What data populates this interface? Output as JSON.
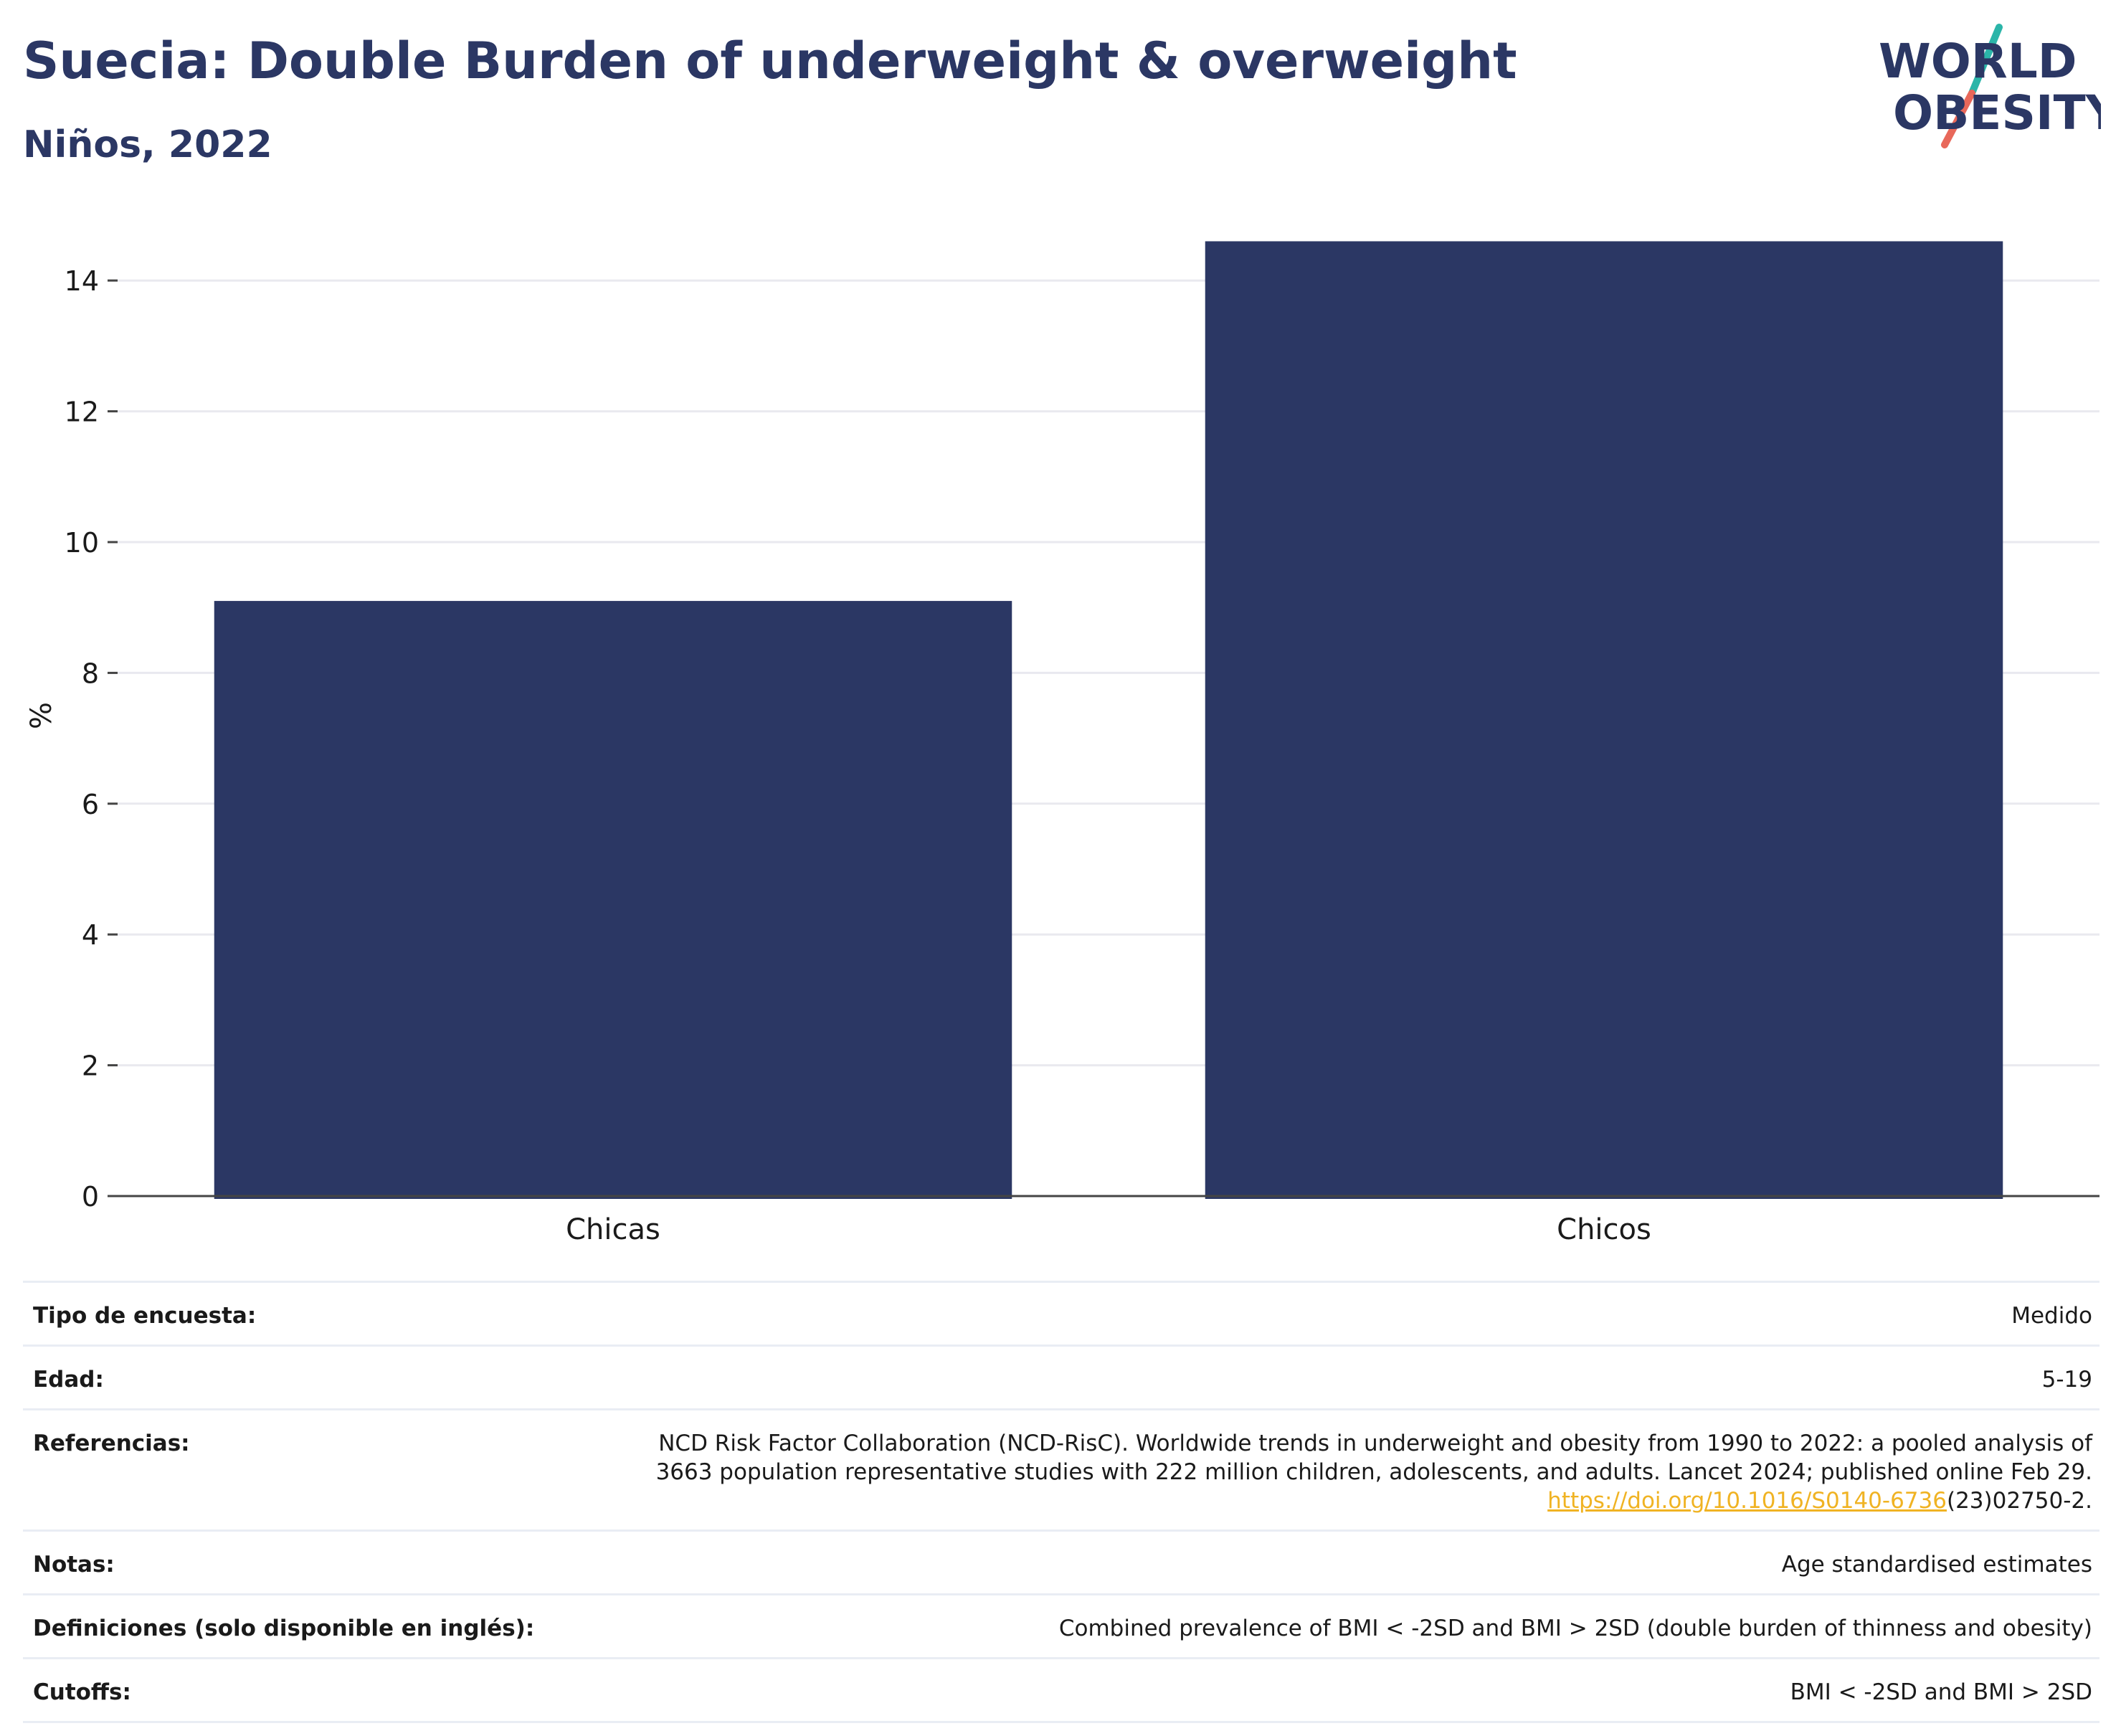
{
  "header": {
    "title": "Suecia: Double Burden of underweight & overweight",
    "subtitle": "Niños, 2022"
  },
  "logo": {
    "line1": "WORLD",
    "line2": "OBESITY",
    "text_color": "#2b3764",
    "slash_top_color": "#2bb5a9",
    "slash_bottom_color": "#e8685a"
  },
  "chart_data": {
    "type": "bar",
    "categories": [
      "Chicas",
      "Chicos"
    ],
    "values": [
      9.1,
      14.6
    ],
    "title": "Suecia: Double Burden of underweight & overweight",
    "subtitle": "Niños, 2022",
    "xlabel": "",
    "ylabel": "%",
    "ylim": [
      0,
      15
    ],
    "yticks": [
      0,
      2,
      4,
      6,
      8,
      10,
      12,
      14
    ],
    "grid": true,
    "bar_color": "#2b3764"
  },
  "info": {
    "survey_type": {
      "label": "Tipo de encuesta:",
      "value": "Medido"
    },
    "age": {
      "label": "Edad:",
      "value": "5-19"
    },
    "references": {
      "label": "Referencias:",
      "line1": "NCD Risk Factor Collaboration (NCD-RisC). Worldwide trends in underweight and obesity from 1990 to 2022: a pooled analysis of",
      "line2": "3663 population representative studies with 222 million children, adolescents, and adults. Lancet 2024; published online Feb 29.",
      "link": "https://doi.org/10.1016/S0140-6736",
      "suffix": "(23)02750-2."
    },
    "notes": {
      "label": "Notas:",
      "value": "Age standardised estimates"
    },
    "definitions": {
      "label": "Definiciones (solo disponible en inglés):",
      "value": "Combined prevalence of BMI < -2SD and BMI > 2SD (double burden of thinness and obesity)"
    },
    "cutoffs": {
      "label": "Cutoffs:",
      "value": "BMI < -2SD and BMI > 2SD"
    }
  }
}
